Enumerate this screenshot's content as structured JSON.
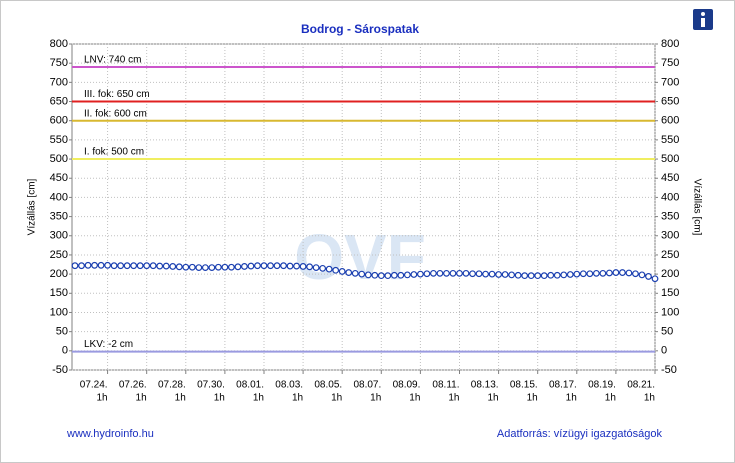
{
  "chart_data": {
    "type": "line",
    "title": "Bodrog - Sárospatak",
    "ylabel": "Vízállás [cm]",
    "y2label": "Vízállás [cm]",
    "ylim": [
      -50,
      800
    ],
    "yticks": [
      -50,
      0,
      50,
      100,
      150,
      200,
      250,
      300,
      350,
      400,
      450,
      500,
      550,
      600,
      650,
      700,
      750,
      800
    ],
    "y2lim": [
      -50,
      800
    ],
    "y2ticks": [
      -50,
      0,
      50,
      100,
      150,
      200,
      250,
      300,
      350,
      400,
      450,
      500,
      550,
      600,
      650,
      700,
      750,
      800
    ],
    "grid": true,
    "categories": [
      null,
      null,
      null,
      null,
      null,
      "07.24.",
      null,
      null,
      null,
      null,
      null,
      "07.26.",
      null,
      null,
      null,
      null,
      null,
      "07.28.",
      null,
      null,
      null,
      null,
      null,
      "07.30.",
      null,
      null,
      null,
      null,
      null,
      "08.01.",
      null,
      null,
      null,
      null,
      null,
      "08.03.",
      null,
      null,
      null,
      null,
      null,
      "08.05.",
      null,
      null,
      null,
      null,
      null,
      "08.07.",
      null,
      null,
      null,
      null,
      null,
      "08.09.",
      null,
      null,
      null,
      null,
      null,
      "08.11.",
      null,
      null,
      null,
      null,
      null,
      "08.13.",
      null,
      null,
      null,
      null,
      null,
      "08.15.",
      null,
      null,
      null,
      null,
      null,
      "08.17.",
      null,
      null,
      null,
      null,
      null,
      "08.19.",
      null,
      null,
      null,
      null,
      null,
      "08.21."
    ],
    "category_times": [
      null,
      null,
      null,
      null,
      null,
      "1h",
      null,
      null,
      null,
      null,
      null,
      "1h",
      null,
      null,
      null,
      null,
      null,
      "1h",
      null,
      null,
      null,
      null,
      null,
      "1h",
      null,
      null,
      null,
      null,
      null,
      "1h",
      null,
      null,
      null,
      null,
      null,
      "1h",
      null,
      null,
      null,
      null,
      null,
      "1h",
      null,
      null,
      null,
      null,
      null,
      "1h",
      null,
      null,
      null,
      null,
      null,
      "1h",
      null,
      null,
      null,
      null,
      null,
      "1h",
      null,
      null,
      null,
      null,
      null,
      "1h",
      null,
      null,
      null,
      null,
      null,
      "1h",
      null,
      null,
      null,
      null,
      null,
      "1h",
      null,
      null,
      null,
      null,
      null,
      "1h",
      null,
      null,
      null,
      null,
      null,
      "1h"
    ],
    "series": [
      {
        "name": "Vízállás",
        "color": "#1a3fb0",
        "values": [
          222,
          222,
          223,
          223,
          223,
          223,
          222,
          222,
          222,
          222,
          222,
          222,
          222,
          221,
          221,
          220,
          219,
          218,
          218,
          217,
          217,
          217,
          218,
          218,
          218,
          219,
          220,
          221,
          222,
          222,
          222,
          222,
          222,
          221,
          221,
          220,
          219,
          217,
          215,
          213,
          210,
          207,
          204,
          202,
          200,
          198,
          197,
          196,
          196,
          197,
          197,
          198,
          199,
          200,
          201,
          202,
          202,
          202,
          202,
          202,
          202,
          201,
          201,
          200,
          200,
          199,
          199,
          198,
          197,
          196,
          196,
          196,
          196,
          197,
          197,
          198,
          199,
          200,
          201,
          201,
          202,
          202,
          203,
          204,
          204,
          203,
          201,
          198,
          194,
          188
        ]
      }
    ],
    "reference_lines": [
      {
        "label": "LNV: 740 cm",
        "value": 740,
        "color": "#cc55cc"
      },
      {
        "label": "III. fok: 650 cm",
        "value": 650,
        "color": "#e02020"
      },
      {
        "label": "II. fok: 600 cm",
        "value": 600,
        "color": "#d8b830"
      },
      {
        "label": "I. fok: 500 cm",
        "value": 500,
        "color": "#f0ee60"
      },
      {
        "label": "LKV: -2 cm",
        "value": -2,
        "color": "#9a9ae0"
      }
    ],
    "watermark": "OVF",
    "footer_left": "www.hydroinfo.hu",
    "footer_right": "Adatforrás: vízügyi igazgatóságok"
  }
}
